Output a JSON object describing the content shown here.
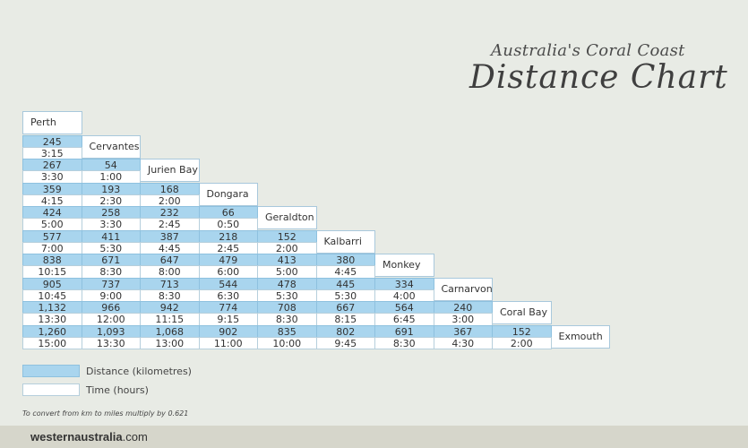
{
  "title": {
    "subtitle": "Australia's Coral Coast",
    "main": "Distance Chart"
  },
  "towns": [
    "Perth",
    "Cervantes",
    "Jurien Bay",
    "Dongara",
    "Geraldton",
    "Kalbarri",
    "Monkey Mia",
    "Carnarvon",
    "Coral Bay",
    "Exmouth"
  ],
  "rows": [
    {
      "distances": [
        "245"
      ],
      "times": [
        "3:15"
      ]
    },
    {
      "distances": [
        "267",
        "54"
      ],
      "times": [
        "3:30",
        "1:00"
      ]
    },
    {
      "distances": [
        "359",
        "193",
        "168"
      ],
      "times": [
        "4:15",
        "2:30",
        "2:00"
      ]
    },
    {
      "distances": [
        "424",
        "258",
        "232",
        "66"
      ],
      "times": [
        "5:00",
        "3:30",
        "2:45",
        "0:50"
      ]
    },
    {
      "distances": [
        "577",
        "411",
        "387",
        "218",
        "152"
      ],
      "times": [
        "7:00",
        "5:30",
        "4:45",
        "2:45",
        "2:00"
      ]
    },
    {
      "distances": [
        "838",
        "671",
        "647",
        "479",
        "413",
        "380"
      ],
      "times": [
        "10:15",
        "8:30",
        "8:00",
        "6:00",
        "5:00",
        "4:45"
      ]
    },
    {
      "distances": [
        "905",
        "737",
        "713",
        "544",
        "478",
        "445",
        "334"
      ],
      "times": [
        "10:45",
        "9:00",
        "8:30",
        "6:30",
        "5:30",
        "5:30",
        "4:00"
      ]
    },
    {
      "distances": [
        "1,132",
        "966",
        "942",
        "774",
        "708",
        "667",
        "564",
        "240"
      ],
      "times": [
        "13:30",
        "12:00",
        "11:15",
        "9:15",
        "8:30",
        "8:15",
        "6:45",
        "3:00"
      ]
    },
    {
      "distances": [
        "1,260",
        "1,093",
        "1,068",
        "902",
        "835",
        "802",
        "691",
        "367",
        "152"
      ],
      "times": [
        "15:00",
        "13:30",
        "13:00",
        "11:00",
        "10:00",
        "9:45",
        "8:30",
        "4:30",
        "2:00"
      ]
    }
  ],
  "legend": {
    "distance_label": "Distance (kilometres)",
    "time_label": "Time (hours)"
  },
  "note": "To convert from km to miles multiply by 0.621",
  "footer": {
    "brand_main": "westernaustralia",
    "brand_suffix": ".com"
  },
  "colors": {
    "distance": "#a9d5ee",
    "time": "#ffffff",
    "background": "#e8ebe5",
    "footer": "#d6d6cb"
  }
}
